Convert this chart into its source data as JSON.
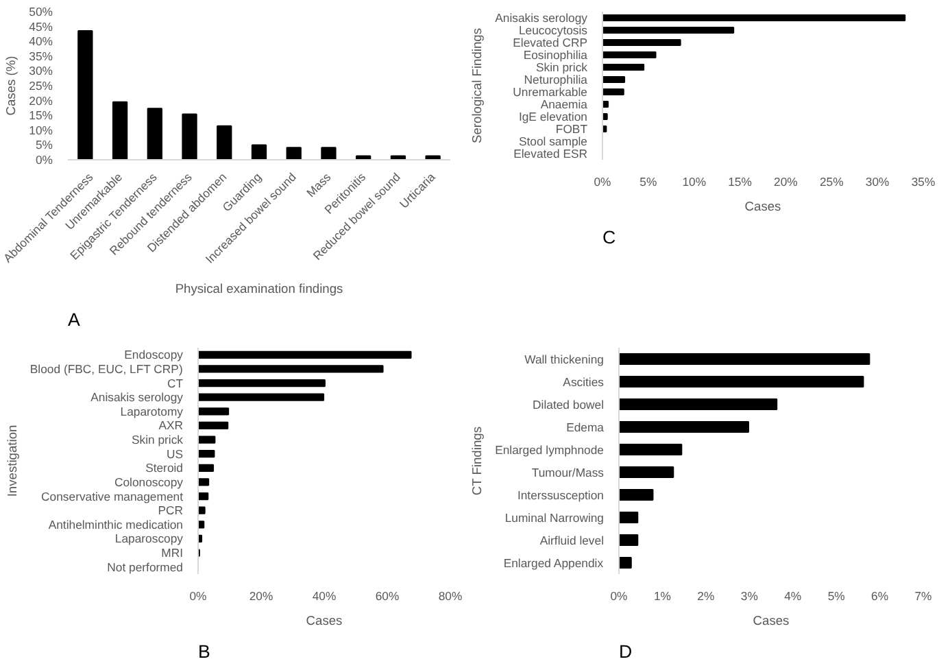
{
  "chart_data": [
    {
      "type": "bar",
      "xlabel": "Physical examination findings",
      "ylabel": "Cases (%)",
      "annotations": [
        "A"
      ],
      "color": "#000000",
      "categories": [
        "Abdominal Tenderness",
        "Unremarkable",
        "Epigastric Tenderness",
        "Rebound tenderness",
        "Distended abdomen",
        "Guarding",
        "Increased bowel sound",
        "Mass",
        "Peritonitis",
        "Reduced bowel sound",
        "Urticaria"
      ],
      "values": [
        43.5,
        19.5,
        17.3,
        15.4,
        11.4,
        5,
        4.1,
        4.1,
        1.3,
        1.3,
        1.3
      ],
      "ylim": [
        0,
        50
      ],
      "yticks": [
        {
          "value": 0,
          "label": "0%"
        },
        {
          "value": 5,
          "label": "5%"
        },
        {
          "value": 10,
          "label": "10%"
        },
        {
          "value": 15,
          "label": "15%"
        },
        {
          "value": 20,
          "label": "20%"
        },
        {
          "value": 25,
          "label": "25%"
        },
        {
          "value": 30,
          "label": "30%"
        },
        {
          "value": 35,
          "label": "35%"
        },
        {
          "value": 40,
          "label": "40%"
        },
        {
          "value": 45,
          "label": "45%"
        },
        {
          "value": 50,
          "label": "50%"
        }
      ],
      "grid": false,
      "legend": false
    },
    {
      "type": "bar",
      "orientation": "horizontal",
      "xlabel": "Cases",
      "ylabel": "Serological Findings",
      "annotations": [
        "C"
      ],
      "color": "#000000",
      "categories": [
        "Anisakis serology",
        "Leucocytosis",
        "Elevated CRP",
        "Eosinophilia",
        "Skin prick",
        "Neturophilia",
        "Unremarkable",
        "Anaemia",
        "IgE elevation",
        "FOBT",
        "Stool sample",
        "Elevated ESR"
      ],
      "values": [
        33.0,
        14.3,
        8.5,
        5.8,
        4.5,
        2.4,
        2.3,
        0.6,
        0.5,
        0.4,
        0,
        0
      ],
      "xlim": [
        0,
        35
      ],
      "xticks": [
        {
          "value": 0,
          "label": "0%"
        },
        {
          "value": 5,
          "label": "5%"
        },
        {
          "value": 10,
          "label": "10%"
        },
        {
          "value": 15,
          "label": "15%"
        },
        {
          "value": 20,
          "label": "20%"
        },
        {
          "value": 25,
          "label": "25%"
        },
        {
          "value": 30,
          "label": "30%"
        },
        {
          "value": 35,
          "label": "35%"
        }
      ],
      "grid": false,
      "legend": false
    },
    {
      "type": "bar",
      "orientation": "horizontal",
      "xlabel": "Cases",
      "ylabel": "Investigation",
      "annotations": [
        "B"
      ],
      "color": "#000000",
      "categories": [
        "Endoscopy",
        "Blood (FBC, EUC, LFT CRP)",
        "CT",
        "Anisakis serology",
        "Laparotomy",
        "AXR",
        "Skin prick",
        "US",
        "Steroid",
        "Colonoscopy",
        "Conservative management",
        "PCR",
        "Antihelminthic medication",
        "Laparoscopy",
        "MRI",
        "Not performed"
      ],
      "values": [
        67.5,
        58.6,
        40.2,
        39.8,
        9.6,
        9.4,
        5.3,
        5.1,
        4.8,
        3.3,
        3.1,
        2.1,
        1.8,
        1.1,
        0.4,
        0
      ],
      "xlim": [
        0,
        80
      ],
      "xticks": [
        {
          "value": 0,
          "label": "0%"
        },
        {
          "value": 20,
          "label": "20%"
        },
        {
          "value": 40,
          "label": "40%"
        },
        {
          "value": 60,
          "label": "60%"
        },
        {
          "value": 80,
          "label": "80%"
        }
      ],
      "grid": false,
      "legend": false
    },
    {
      "type": "bar",
      "orientation": "horizontal",
      "xlabel": "Cases",
      "ylabel": "CT Findings",
      "annotations": [
        "D"
      ],
      "color": "#000000",
      "categories": [
        "Wall thickening",
        "Ascities",
        "Dilated bowel",
        "Edema",
        "Enlarged lymphnode",
        "Tumour/Mass",
        "Interssusception",
        "Luminal Narrowing",
        "Airfluid level",
        "Enlarged Appendix"
      ],
      "values": [
        5.76,
        5.62,
        3.63,
        2.98,
        1.44,
        1.25,
        0.78,
        0.43,
        0.43,
        0.28
      ],
      "xlim": [
        0,
        7
      ],
      "xticks": [
        {
          "value": 0,
          "label": "0%"
        },
        {
          "value": 1,
          "label": "1%"
        },
        {
          "value": 2,
          "label": "2%"
        },
        {
          "value": 3,
          "label": "3%"
        },
        {
          "value": 4,
          "label": "4%"
        },
        {
          "value": 5,
          "label": "5%"
        },
        {
          "value": 6,
          "label": "6%"
        },
        {
          "value": 7,
          "label": "7%"
        }
      ],
      "grid": false,
      "legend": false
    }
  ]
}
